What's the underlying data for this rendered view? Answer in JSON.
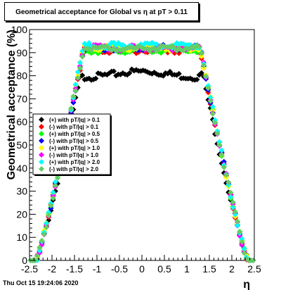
{
  "chart_data": {
    "type": "scatter",
    "title": "Geometrical acceptance for Global vs   η at pT > 0.11",
    "xlabel": "η",
    "ylabel": "Geometrical acceptance (%)",
    "xlim": [
      -2.5,
      2.5
    ],
    "ylim": [
      0,
      100
    ],
    "x_ticks": [
      "-2.5",
      "-2",
      "-1.5",
      "-1",
      "-0.5",
      "0",
      "0.5",
      "1",
      "1.5",
      "2",
      "2.5"
    ],
    "y_ticks": [
      "0",
      "10",
      "20",
      "30",
      "40",
      "50",
      "60",
      "70",
      "80",
      "90",
      "100"
    ],
    "legend_position": "middle-left",
    "grid": false,
    "series": [
      {
        "name": "(+) with pT/|q| > 0.1",
        "color": "#000000",
        "plateau": 81,
        "rise_start": -2.35,
        "rise_end": -1.35
      },
      {
        "name": "(-) with pT/|q| > 0.1",
        "color": "#ff0000",
        "plateau": 91,
        "rise_start": -2.35,
        "rise_end": -1.3
      },
      {
        "name": "(+) with pT/|q| > 0.5",
        "color": "#00ff00",
        "plateau": 91,
        "rise_start": -2.35,
        "rise_end": -1.3
      },
      {
        "name": "(-) with pT/|q| > 0.5",
        "color": "#0000ff",
        "plateau": 92,
        "rise_start": -2.35,
        "rise_end": -1.3
      },
      {
        "name": "(+) with pT/|q| > 1.0",
        "color": "#ffff00",
        "plateau": 92,
        "rise_start": -2.35,
        "rise_end": -1.3
      },
      {
        "name": "(-) with pT/|q| > 1.0",
        "color": "#ff00ff",
        "plateau": 92,
        "rise_start": -2.35,
        "rise_end": -1.3
      },
      {
        "name": "(+) with pT/|q| > 2.0",
        "color": "#00ffff",
        "plateau": 93,
        "rise_start": -2.35,
        "rise_end": -1.3
      },
      {
        "name": "(-) with pT/|q| > 2.0",
        "color": "#66cc66",
        "plateau": 92,
        "rise_start": -2.35,
        "rise_end": -1.3
      }
    ]
  },
  "footer": {
    "timestamp": "Thu Oct 15 19:24:06 2020"
  }
}
